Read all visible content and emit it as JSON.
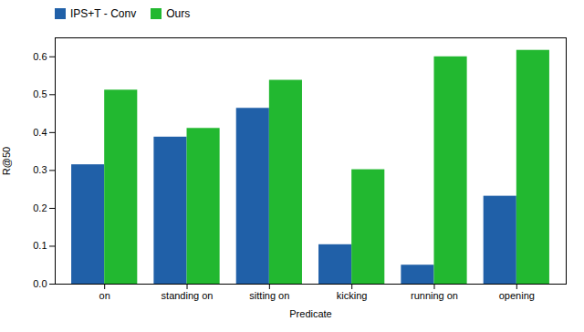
{
  "chart_data": {
    "type": "bar",
    "xlabel": "Predicate",
    "ylabel": "R@50",
    "categories": [
      "on",
      "standing on",
      "sitting on",
      "kicking",
      "running on",
      "opening"
    ],
    "series": [
      {
        "name": "IPS+T - Conv",
        "color": "#2060a8",
        "values": [
          0.315,
          0.388,
          0.464,
          0.104,
          0.05,
          0.232
        ]
      },
      {
        "name": "Ours",
        "color": "#22b830",
        "values": [
          0.512,
          0.411,
          0.538,
          0.302,
          0.6,
          0.617
        ]
      }
    ],
    "ylim": [
      0.0,
      0.65
    ],
    "yticks": [
      {
        "value": 0.0,
        "label": "0.0"
      },
      0.1,
      0.2,
      0.3,
      0.4,
      0.5,
      0.6
    ],
    "legend": "upper left",
    "grid": false
  }
}
